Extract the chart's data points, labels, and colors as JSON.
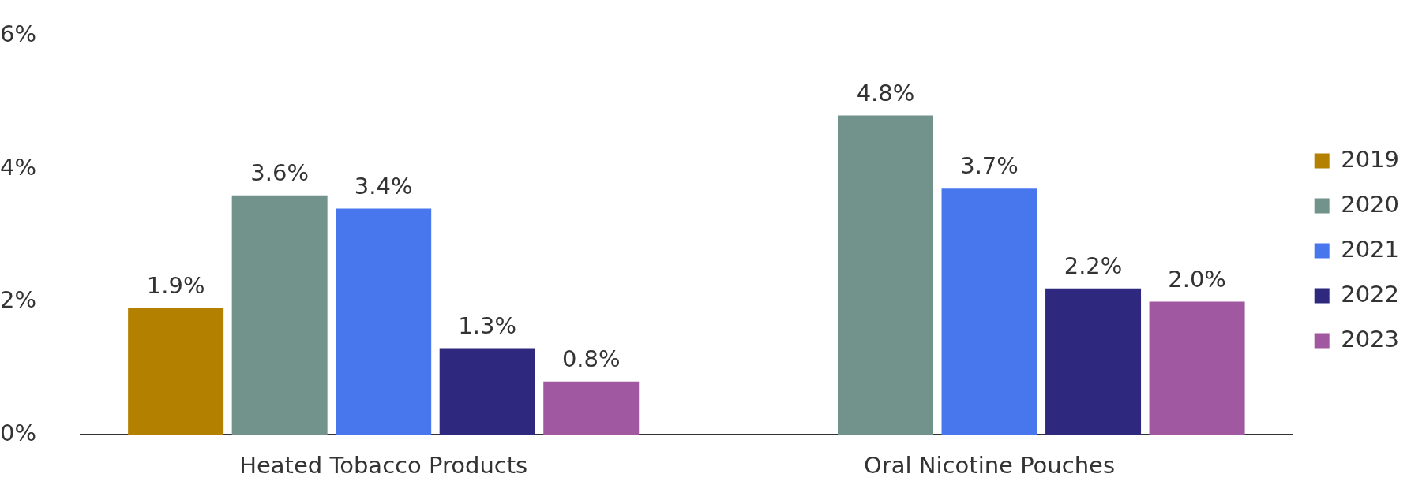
{
  "chart_data": {
    "type": "bar",
    "categories": [
      "Heated Tobacco Products",
      "Oral Nicotine Pouches"
    ],
    "series": [
      {
        "name": "2019",
        "color": "#b38000",
        "values": [
          1.9,
          null
        ],
        "value_labels": [
          "1.9%",
          null
        ]
      },
      {
        "name": "2020",
        "color": "#72938c",
        "values": [
          3.6,
          4.8
        ],
        "value_labels": [
          "3.6%",
          "4.8%"
        ]
      },
      {
        "name": "2021",
        "color": "#4876ec",
        "values": [
          3.4,
          3.7
        ],
        "value_labels": [
          "3.4%",
          "3.7%"
        ]
      },
      {
        "name": "2022",
        "color": "#2e287e",
        "values": [
          1.3,
          2.2
        ],
        "value_labels": [
          "1.3%",
          "2.2%"
        ]
      },
      {
        "name": "2023",
        "color": "#a059a0",
        "values": [
          0.8,
          2.0
        ],
        "value_labels": [
          "0.8%",
          "2.0%"
        ]
      }
    ],
    "ylim": [
      0,
      6
    ],
    "yticks": [
      {
        "value": 0,
        "label": "0%"
      },
      {
        "value": 2,
        "label": "2%"
      },
      {
        "value": 4,
        "label": "4%"
      },
      {
        "value": 6,
        "label": "6%"
      }
    ],
    "grid": false,
    "legend": "right"
  }
}
